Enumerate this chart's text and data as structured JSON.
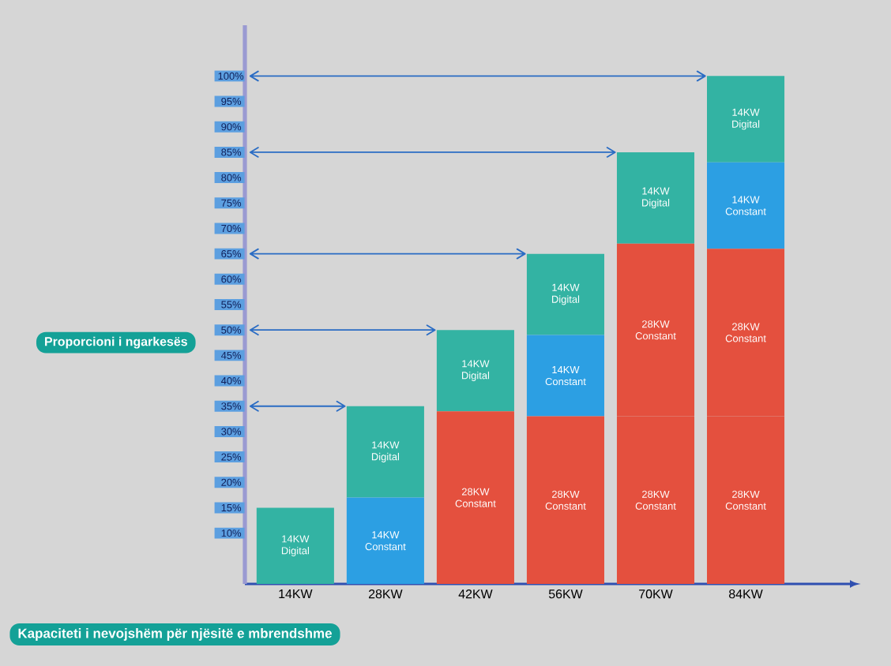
{
  "chart_data": {
    "type": "bar",
    "stacked": true,
    "xlabel": "Kapaciteti i nevojshëm për njësitë e mbrendshme",
    "ylabel": "Proporcioni i ngarkesës",
    "categories": [
      "14KW",
      "28KW",
      "42KW",
      "56KW",
      "70KW",
      "84KW"
    ],
    "series": [
      {
        "name": "28KW Constant",
        "color": "#e4503e",
        "values": [
          null,
          null,
          34,
          33,
          33,
          33
        ]
      },
      {
        "name": "28KW Constant",
        "color": "#e4503e",
        "values": [
          null,
          null,
          null,
          null,
          34,
          33
        ]
      },
      {
        "name": "14KW Constant",
        "color": "#2c9fe3",
        "values": [
          null,
          17,
          null,
          16,
          null,
          17
        ]
      },
      {
        "name": "14KW Digital",
        "color": "#33b3a3",
        "values": [
          15,
          18,
          16,
          16,
          18,
          17
        ]
      }
    ],
    "ylim": [
      0,
      110
    ],
    "yticks": [
      {
        "value": 10,
        "label": "10%"
      },
      {
        "value": 15,
        "label": "15%"
      },
      {
        "value": 20,
        "label": "20%"
      },
      {
        "value": 25,
        "label": "25%"
      },
      {
        "value": 30,
        "label": "30%"
      },
      {
        "value": 35,
        "label": "35%"
      },
      {
        "value": 40,
        "label": "40%"
      },
      {
        "value": 45,
        "label": "45%"
      },
      {
        "value": 50,
        "label": "50%"
      },
      {
        "value": 55,
        "label": "55%"
      },
      {
        "value": 60,
        "label": "60%"
      },
      {
        "value": 65,
        "label": "65%"
      },
      {
        "value": 70,
        "label": "70%"
      },
      {
        "value": 75,
        "label": "75%"
      },
      {
        "value": 80,
        "label": "80%"
      },
      {
        "value": 85,
        "label": "85%"
      },
      {
        "value": 90,
        "label": "90%"
      },
      {
        "value": 95,
        "label": "95%"
      },
      {
        "value": 100,
        "label": "100%"
      }
    ],
    "ref_lines": [
      {
        "axis": "y",
        "value": 35,
        "color": "#2a6cc4"
      },
      {
        "axis": "y",
        "value": 50,
        "color": "#2a6cc4"
      },
      {
        "axis": "y",
        "value": 65,
        "color": "#2a6cc4"
      },
      {
        "axis": "y",
        "value": 85,
        "color": "#2a6cc4"
      },
      {
        "axis": "y",
        "value": 100,
        "color": "#2a6cc4"
      }
    ]
  }
}
